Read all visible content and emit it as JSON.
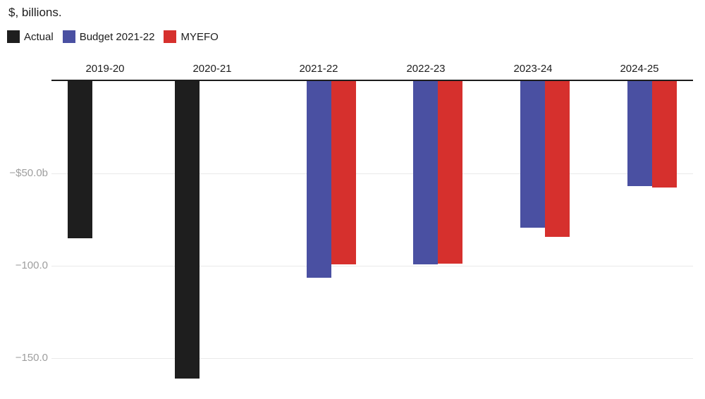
{
  "chart_data": {
    "type": "bar",
    "title": "$, billions.",
    "categories": [
      "2019-20",
      "2020-21",
      "2021-22",
      "2022-23",
      "2023-24",
      "2024-25"
    ],
    "series": [
      {
        "name": "Actual",
        "color": "#1e1e1e",
        "values": [
          -85.3,
          -161.0,
          null,
          null,
          null,
          null
        ]
      },
      {
        "name": "Budget 2021-22",
        "color": "#4a50a2",
        "values": [
          null,
          null,
          -106.6,
          -99.3,
          -79.3,
          -57.0
        ]
      },
      {
        "name": "MYEFO",
        "color": "#d6302d",
        "values": [
          null,
          null,
          -99.2,
          -98.9,
          -84.5,
          -57.5
        ]
      }
    ],
    "yticks": [
      {
        "value": -50,
        "label": "−$50.0b"
      },
      {
        "value": -100,
        "label": "−100.0"
      },
      {
        "value": -150,
        "label": "−150.0"
      }
    ],
    "ylim": [
      -170,
      0
    ],
    "grid": true,
    "legend_position": "top-left",
    "bar_orientation": "vertical-negative"
  }
}
